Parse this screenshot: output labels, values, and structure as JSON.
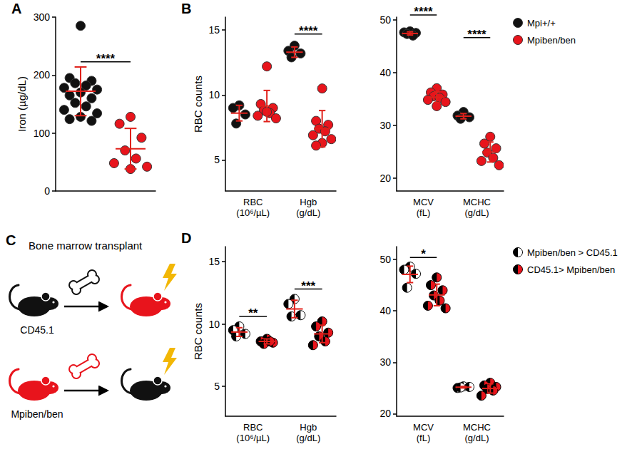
{
  "chart_data": [
    {
      "type": "scatter",
      "panel": "A",
      "ylabel": "Iron (µg/dL)",
      "categories": [
        null,
        null
      ],
      "ylim": [
        0,
        300
      ],
      "yticks": [
        0,
        100,
        200,
        300
      ],
      "grid": false,
      "series": [
        {
          "color": "#111111",
          "marker": "circle",
          "values": [
            [
              285,
              195,
              190,
              186,
              182,
              178,
              175,
              170,
              165,
              160,
              152,
              146,
              140,
              134,
              128,
              124,
              121
            ],
            null
          ],
          "mean": [
            172,
            null
          ],
          "sd": [
            42,
            null
          ]
        },
        {
          "color": "#e8141c",
          "marker": "circle",
          "values": [
            null,
            [
              128,
              116,
              92,
              70,
              56,
              48,
              42,
              38
            ]
          ],
          "mean": [
            null,
            73
          ],
          "sd": [
            null,
            35
          ]
        }
      ],
      "annotations": [
        {
          "text": "****",
          "y": 223,
          "from": {
            "category": 0,
            "series": 0
          },
          "to": {
            "category": 1,
            "series": 1
          }
        }
      ]
    },
    {
      "type": "scatter",
      "panel": "B",
      "ylabel": "RBC counts",
      "categories": [
        "RBC (10⁶/µL)",
        "Hgb (g/dL)"
      ],
      "ylim": [
        2.6,
        16
      ],
      "yticks": [
        5,
        10,
        15
      ],
      "grid": false,
      "series": [
        {
          "color": "#111111",
          "marker": "circle",
          "values": [
            [
              9.2,
              9.0,
              8.5,
              7.8
            ],
            [
              13.8,
              13.4,
              13.2,
              12.9
            ]
          ],
          "mean": [
            8.6,
            13.3
          ],
          "sd": [
            0.6,
            0.4
          ]
        },
        {
          "color": "#e8141c",
          "marker": "circle",
          "values": [
            [
              12.2,
              9.3,
              9.0,
              8.8,
              8.6,
              8.4,
              8.2,
              8.7
            ],
            [
              10.5,
              8.0,
              7.7,
              7.4,
              7.2,
              6.9,
              6.6,
              6.3,
              6.1
            ]
          ],
          "mean": [
            9.15,
            7.4
          ],
          "sd": [
            1.2,
            1.4
          ]
        }
      ],
      "annotations": [
        {
          "text": "****",
          "y": 14.7,
          "from": {
            "category": 1,
            "series": 0
          },
          "to": {
            "category": 1,
            "series": 1
          }
        }
      ]
    },
    {
      "type": "scatter",
      "categories": [
        "MCV (fL)",
        "MCHC (g/dL)"
      ],
      "ylim": [
        17.5,
        50.5
      ],
      "yticks": [
        20,
        30,
        40,
        50
      ],
      "grid": false,
      "legend": "right",
      "series": [
        {
          "name": "Mpi+/+",
          "color": "#111111",
          "marker": "circle",
          "values": [
            [
              47.8,
              47.6,
              47.5,
              47.3,
              47.0
            ],
            [
              32.5,
              31.8,
              31.5,
              31.2
            ]
          ],
          "mean": [
            47.4,
            31.7
          ],
          "sd": [
            0.3,
            0.5
          ]
        },
        {
          "name": "Mpiben/ben",
          "color": "#e8141c",
          "marker": "circle",
          "values": [
            [
              37.0,
              36.2,
              35.8,
              35.5,
              35.2,
              34.8,
              34.4,
              33.6
            ],
            [
              27.8,
              26.5,
              25.6,
              24.8,
              23.8,
              23.2,
              22.4
            ]
          ],
          "mean": [
            35.3,
            24.9
          ],
          "sd": [
            1.0,
            1.9
          ]
        }
      ],
      "annotations": [
        {
          "text": "****",
          "y": 50.9,
          "from": {
            "category": 0,
            "series": 0
          },
          "to": {
            "category": 0,
            "series": 1
          }
        },
        {
          "text": "****",
          "y": 46.6,
          "from": {
            "category": 1,
            "series": 0
          },
          "to": {
            "category": 1,
            "series": 1
          }
        }
      ]
    },
    {
      "type": "scatter",
      "panel": "D",
      "ylabel": "RBC counts",
      "categories": [
        "RBC (10⁶/µL)",
        "Hgb (g/dL)"
      ],
      "ylim": [
        2.6,
        16.2
      ],
      "yticks": [
        5,
        10,
        15
      ],
      "grid": false,
      "series": [
        {
          "color": "#000000",
          "marker": "half-open",
          "values": [
            [
              9.8,
              9.5,
              9.2,
              9.0
            ],
            [
              12.0,
              11.6,
              10.7,
              10.6
            ]
          ],
          "mean": [
            9.35,
            11.2
          ],
          "sd": [
            0.35,
            0.7
          ]
        },
        {
          "color": "#e8141c",
          "marker": "half-dark",
          "values": [
            [
              8.8,
              8.6,
              8.5,
              8.4,
              8.6
            ],
            [
              10.2,
              9.8,
              9.3,
              9.0,
              8.6,
              8.3
            ]
          ],
          "mean": [
            8.6,
            9.2
          ],
          "sd": [
            0.2,
            0.7
          ]
        }
      ],
      "annotations": [
        {
          "text": "**",
          "y": 10.6,
          "from": {
            "category": 0,
            "series": 0
          },
          "to": {
            "category": 0,
            "series": 1
          }
        },
        {
          "text": "***",
          "y": 12.8,
          "from": {
            "category": 1,
            "series": 0
          },
          "to": {
            "category": 1,
            "series": 1
          }
        }
      ]
    },
    {
      "type": "scatter",
      "categories": [
        "MCV (fL)",
        "MCHC (g/dL)"
      ],
      "ylim": [
        19.5,
        52.5
      ],
      "yticks": [
        20,
        30,
        40,
        50
      ],
      "grid": false,
      "legend": "right",
      "series": [
        {
          "name": "Mpiben/ben > CD45.1",
          "color": "#000000",
          "marker": "half-open",
          "values": [
            [
              48.6,
              48.0,
              47.2,
              44.5
            ],
            [
              25.3,
              25.0,
              25.2,
              25.1
            ]
          ],
          "mean": [
            47.1,
            25.15
          ],
          "sd": [
            1.6,
            0.15
          ]
        },
        {
          "name": "CD45.1> Mpiben/ben",
          "color": "#e8141c",
          "marker": "half-dark",
          "values": [
            [
              46.5,
              45.0,
              44.0,
              43.0,
              42.0,
              41.0,
              40.5
            ],
            [
              26.0,
              25.5,
              25.2,
              24.8,
              24.5,
              23.5
            ]
          ],
          "mean": [
            43.1,
            24.9
          ],
          "sd": [
            2.1,
            0.9
          ]
        }
      ],
      "annotations": [
        {
          "text": "*",
          "y": 50.4,
          "from": {
            "category": 0,
            "series": 0
          },
          "to": {
            "category": 0,
            "series": 1
          }
        }
      ]
    }
  ],
  "diagram": {
    "panel": "C",
    "title": "Bone marrow transplant",
    "rows": [
      {
        "donor": {
          "label": "CD45.1",
          "color": "#111111"
        },
        "bone_color": "#111111",
        "recipient_color": "#e8141c"
      },
      {
        "donor": {
          "label": "Mpiben/ben",
          "color": "#e8141c"
        },
        "bone_color": "#e8141c",
        "recipient_color": "#111111"
      }
    ]
  }
}
